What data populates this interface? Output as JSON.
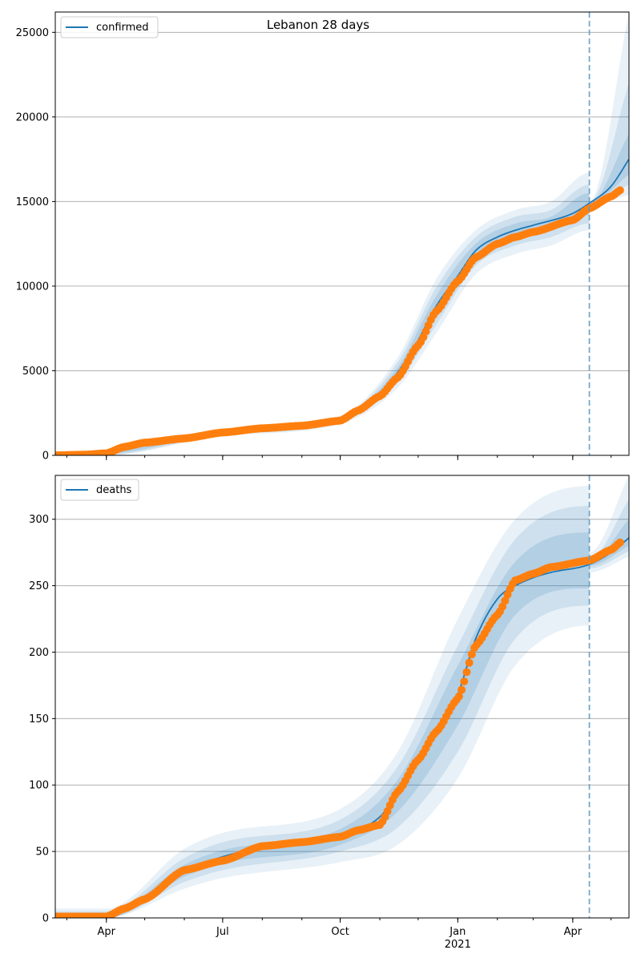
{
  "figure": {
    "title": "Lebanon 28 days"
  },
  "chart_data": [
    {
      "type": "line",
      "panel": "top",
      "title": "Lebanon 28 days",
      "xlabel": "",
      "ylabel": "",
      "x_range": [
        "2020-02-21",
        "2021-05-15"
      ],
      "ylim": [
        0,
        26200
      ],
      "x_ticks": [
        {
          "date": "2020-04-01",
          "label": "Apr"
        },
        {
          "date": "2020-07-01",
          "label": "Jul"
        },
        {
          "date": "2020-10-01",
          "label": "Oct"
        },
        {
          "date": "2021-01-01",
          "label": "Jan",
          "sublabel": "2021"
        },
        {
          "date": "2021-04-01",
          "label": "Apr"
        }
      ],
      "y_ticks": [
        0,
        5000,
        10000,
        15000,
        20000,
        25000
      ],
      "grid": "horizontal",
      "legend": {
        "position": "top-left",
        "entries": [
          "confirmed"
        ]
      },
      "forecast_start": "2021-04-14",
      "series": [
        {
          "name": "confirmed",
          "style": "line",
          "color": "#1f77b4",
          "points": [
            [
              "2020-02-21",
              0
            ],
            [
              "2020-03-15",
              40
            ],
            [
              "2020-04-01",
              120
            ],
            [
              "2020-04-15",
              500
            ],
            [
              "2020-05-01",
              750
            ],
            [
              "2020-06-01",
              1050
            ],
            [
              "2020-07-01",
              1350
            ],
            [
              "2020-08-01",
              1600
            ],
            [
              "2020-09-01",
              1750
            ],
            [
              "2020-10-01",
              2100
            ],
            [
              "2020-10-15",
              2700
            ],
            [
              "2020-11-01",
              3600
            ],
            [
              "2020-11-15",
              4900
            ],
            [
              "2020-12-01",
              6800
            ],
            [
              "2020-12-15",
              8800
            ],
            [
              "2021-01-01",
              10600
            ],
            [
              "2021-01-15",
              12100
            ],
            [
              "2021-02-01",
              12900
            ],
            [
              "2021-02-15",
              13300
            ],
            [
              "2021-03-01",
              13600
            ],
            [
              "2021-04-01",
              14300
            ],
            [
              "2021-04-14",
              14900
            ],
            [
              "2021-05-01",
              15900
            ],
            [
              "2021-05-15",
              17500
            ]
          ]
        },
        {
          "name": "observed",
          "style": "dots",
          "color": "#ff7f0e",
          "points": [
            [
              "2020-02-21",
              0
            ],
            [
              "2020-03-15",
              40
            ],
            [
              "2020-04-01",
              120
            ],
            [
              "2020-04-15",
              500
            ],
            [
              "2020-05-01",
              750
            ],
            [
              "2020-06-01",
              1000
            ],
            [
              "2020-07-01",
              1350
            ],
            [
              "2020-08-01",
              1600
            ],
            [
              "2020-09-01",
              1750
            ],
            [
              "2020-10-01",
              2050
            ],
            [
              "2020-10-15",
              2650
            ],
            [
              "2020-11-01",
              3500
            ],
            [
              "2020-11-15",
              4600
            ],
            [
              "2020-12-01",
              6500
            ],
            [
              "2020-12-15",
              8500
            ],
            [
              "2021-01-01",
              10300
            ],
            [
              "2021-01-15",
              11700
            ],
            [
              "2021-02-01",
              12500
            ],
            [
              "2021-02-15",
              12900
            ],
            [
              "2021-03-01",
              13200
            ],
            [
              "2021-04-01",
              13900
            ],
            [
              "2021-04-14",
              14600
            ],
            [
              "2021-05-01",
              15300
            ],
            [
              "2021-05-09",
              15700
            ]
          ]
        }
      ],
      "bands": [
        {
          "level": "outer",
          "points": [
            [
              "2020-02-21",
              0,
              200
            ],
            [
              "2020-04-01",
              0,
              300
            ],
            [
              "2020-07-01",
              1150,
              1550
            ],
            [
              "2020-10-01",
              1850,
              2350
            ],
            [
              "2020-11-15",
              4000,
              5800
            ],
            [
              "2020-12-15",
              7200,
              10400
            ],
            [
              "2021-01-15",
              10700,
              13300
            ],
            [
              "2021-02-15",
              11900,
              14500
            ],
            [
              "2021-03-15",
              12400,
              15000
            ],
            [
              "2021-04-14",
              13300,
              16700
            ],
            [
              "2021-04-14",
              14800,
              15000
            ],
            [
              "2021-05-15",
              15400,
              26200
            ]
          ]
        },
        {
          "level": "middle",
          "points": [
            [
              "2020-02-21",
              0,
              150
            ],
            [
              "2020-04-01",
              20,
              250
            ],
            [
              "2020-07-01",
              1220,
              1480
            ],
            [
              "2020-10-01",
              1950,
              2250
            ],
            [
              "2020-11-15",
              4300,
              5500
            ],
            [
              "2020-12-15",
              7700,
              9900
            ],
            [
              "2021-01-15",
              11200,
              12900
            ],
            [
              "2021-02-15",
              12400,
              14100
            ],
            [
              "2021-03-15",
              12900,
              14500
            ],
            [
              "2021-04-14",
              13700,
              16000
            ],
            [
              "2021-04-14",
              14850,
              14950
            ],
            [
              "2021-05-15",
              16000,
              22000
            ]
          ]
        },
        {
          "level": "inner",
          "points": [
            [
              "2020-02-21",
              0,
              100
            ],
            [
              "2020-04-01",
              60,
              190
            ],
            [
              "2020-07-01",
              1290,
              1410
            ],
            [
              "2020-10-01",
              2030,
              2170
            ],
            [
              "2020-11-15",
              4600,
              5200
            ],
            [
              "2020-12-15",
              8200,
              9400
            ],
            [
              "2021-01-15",
              11600,
              12500
            ],
            [
              "2021-02-15",
              12900,
              13700
            ],
            [
              "2021-03-15",
              13300,
              14100
            ],
            [
              "2021-04-14",
              14200,
              15500
            ],
            [
              "2021-04-14",
              14880,
              14920
            ],
            [
              "2021-05-15",
              16600,
              19000
            ]
          ]
        }
      ]
    },
    {
      "type": "line",
      "panel": "bottom",
      "xlabel": "",
      "ylabel": "",
      "x_range": [
        "2020-02-21",
        "2021-05-15"
      ],
      "ylim": [
        0,
        333
      ],
      "x_ticks": [
        {
          "date": "2020-04-01",
          "label": "Apr"
        },
        {
          "date": "2020-07-01",
          "label": "Jul"
        },
        {
          "date": "2020-10-01",
          "label": "Oct"
        },
        {
          "date": "2021-01-01",
          "label": "Jan",
          "sublabel": "2021"
        },
        {
          "date": "2021-04-01",
          "label": "Apr"
        }
      ],
      "y_ticks": [
        0,
        50,
        100,
        150,
        200,
        250,
        300
      ],
      "grid": "horizontal",
      "legend": {
        "position": "top-left",
        "entries": [
          "deaths"
        ]
      },
      "forecast_start": "2021-04-14",
      "series": [
        {
          "name": "deaths",
          "style": "line",
          "color": "#1f77b4",
          "points": [
            [
              "2020-02-21",
              1
            ],
            [
              "2020-04-01",
              1
            ],
            [
              "2020-04-15",
              6
            ],
            [
              "2020-05-01",
              15
            ],
            [
              "2020-06-01",
              35
            ],
            [
              "2020-07-01",
              46
            ],
            [
              "2020-08-01",
              53
            ],
            [
              "2020-09-01",
              57
            ],
            [
              "2020-10-01",
              61
            ],
            [
              "2020-10-15",
              66
            ],
            [
              "2020-11-01",
              76
            ],
            [
              "2020-11-15",
              93
            ],
            [
              "2020-12-01",
              118
            ],
            [
              "2020-12-15",
              140
            ],
            [
              "2021-01-01",
              168
            ],
            [
              "2021-01-15",
              210
            ],
            [
              "2021-02-01",
              240
            ],
            [
              "2021-02-15",
              250
            ],
            [
              "2021-03-01",
              256
            ],
            [
              "2021-03-15",
              260
            ],
            [
              "2021-04-14",
              266
            ],
            [
              "2021-05-01",
              275
            ],
            [
              "2021-05-15",
              286
            ]
          ]
        },
        {
          "name": "observed",
          "style": "dots",
          "color": "#ff7f0e",
          "points": [
            [
              "2020-02-21",
              1
            ],
            [
              "2020-04-01",
              1
            ],
            [
              "2020-04-15",
              7
            ],
            [
              "2020-05-01",
              14
            ],
            [
              "2020-06-01",
              36
            ],
            [
              "2020-07-01",
              43
            ],
            [
              "2020-08-01",
              54
            ],
            [
              "2020-09-01",
              57
            ],
            [
              "2020-10-01",
              61
            ],
            [
              "2020-10-15",
              66
            ],
            [
              "2020-11-01",
              70
            ],
            [
              "2020-11-15",
              95
            ],
            [
              "2020-12-01",
              119
            ],
            [
              "2020-12-15",
              140
            ],
            [
              "2021-01-01",
              165
            ],
            [
              "2021-01-15",
              205
            ],
            [
              "2021-02-01",
              228
            ],
            [
              "2021-02-15",
              254
            ],
            [
              "2021-03-01",
              259
            ],
            [
              "2021-03-15",
              264
            ],
            [
              "2021-04-14",
              269
            ],
            [
              "2021-05-01",
              277
            ],
            [
              "2021-05-09",
              283
            ]
          ]
        }
      ],
      "bands": [
        {
          "level": "outer",
          "points": [
            [
              "2020-02-21",
              0,
              7
            ],
            [
              "2020-04-01",
              0,
              7
            ],
            [
              "2020-06-01",
              22,
              52
            ],
            [
              "2020-07-01",
              30,
              64
            ],
            [
              "2020-10-01",
              42,
              82
            ],
            [
              "2020-11-15",
              55,
              125
            ],
            [
              "2021-01-01",
              105,
              225
            ],
            [
              "2021-02-15",
              190,
              300
            ],
            [
              "2021-04-14",
              220,
              325
            ],
            [
              "2021-04-14",
              260,
              275
            ],
            [
              "2021-05-15",
              272,
              333
            ]
          ]
        },
        {
          "level": "middle",
          "points": [
            [
              "2020-02-21",
              0,
              5
            ],
            [
              "2020-04-01",
              0,
              5
            ],
            [
              "2020-06-01",
              27,
              45
            ],
            [
              "2020-07-01",
              36,
              57
            ],
            [
              "2020-10-01",
              50,
              74
            ],
            [
              "2020-11-15",
              68,
              114
            ],
            [
              "2021-01-01",
              125,
              205
            ],
            [
              "2021-02-15",
              210,
              285
            ],
            [
              "2021-04-14",
              235,
              310
            ],
            [
              "2021-04-14",
              263,
              270
            ],
            [
              "2021-05-15",
              276,
              315
            ]
          ]
        },
        {
          "level": "inner",
          "points": [
            [
              "2020-02-21",
              0,
              3
            ],
            [
              "2020-04-01",
              0,
              3
            ],
            [
              "2020-06-01",
              31,
              40
            ],
            [
              "2020-07-01",
              41,
              51
            ],
            [
              "2020-10-01",
              55,
              67
            ],
            [
              "2020-11-15",
              80,
              104
            ],
            [
              "2021-01-01",
              145,
              190
            ],
            [
              "2021-02-15",
              228,
              268
            ],
            [
              "2021-04-14",
              248,
              290
            ],
            [
              "2021-04-14",
              265,
              268
            ],
            [
              "2021-05-15",
              280,
              300
            ]
          ]
        }
      ]
    }
  ],
  "colors": {
    "line": "#1f77b4",
    "dots": "#ff7f0e",
    "band": "#1f77b4",
    "forecast_line": "#5a9ac6",
    "grid": "#b0b0b0"
  }
}
